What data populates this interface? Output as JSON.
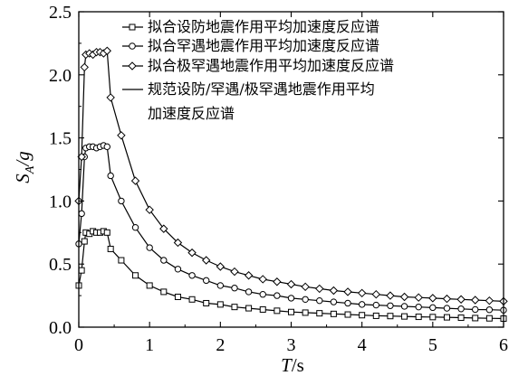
{
  "chart_data": {
    "type": "line",
    "xlabel_var": "T",
    "xlabel_unit": "/s",
    "ylabel_var": "S",
    "ylabel_sub": "A",
    "ylabel_tail": "/g",
    "xlim": [
      0,
      6
    ],
    "ylim": [
      0,
      2.5
    ],
    "x_ticks": [
      "0",
      "1",
      "2",
      "3",
      "4",
      "5",
      "6"
    ],
    "y_ticks": [
      "0.0",
      "0.5",
      "1.0",
      "1.5",
      "2.0",
      "2.5"
    ],
    "grid": false,
    "legend_position": "top-right",
    "legend_entries": [
      {
        "label": "拟合设防地震作用平均加速度反应谱",
        "marker": "square"
      },
      {
        "label": "拟合罕遇地震作用平均加速度反应谱",
        "marker": "circle"
      },
      {
        "label": "拟合极罕遇地震作用平均加速度反应谱",
        "marker": "diamond"
      },
      {
        "label": "规范设防/罕遇/极罕遇地震作用平均",
        "label_line2": "加速度反应谱",
        "marker": "line"
      }
    ],
    "x": [
      0,
      0.04,
      0.08,
      0.1,
      0.15,
      0.2,
      0.25,
      0.3,
      0.35,
      0.4,
      0.45,
      0.6,
      0.8,
      1.0,
      1.2,
      1.4,
      1.6,
      1.8,
      2.0,
      2.2,
      2.4,
      2.6,
      2.8,
      3.0,
      3.2,
      3.4,
      3.6,
      3.8,
      4.0,
      4.2,
      4.4,
      4.6,
      4.8,
      5.0,
      5.2,
      5.4,
      5.6,
      5.8,
      6.0
    ],
    "series": [
      {
        "name": "拟合设防地震作用平均加速度反应谱",
        "marker": "square",
        "values": [
          0.33,
          0.45,
          0.68,
          0.75,
          0.74,
          0.76,
          0.75,
          0.75,
          0.76,
          0.75,
          0.62,
          0.53,
          0.41,
          0.33,
          0.28,
          0.24,
          0.22,
          0.19,
          0.18,
          0.16,
          0.15,
          0.14,
          0.13,
          0.12,
          0.115,
          0.11,
          0.105,
          0.1,
          0.095,
          0.09,
          0.088,
          0.085,
          0.082,
          0.08,
          0.078,
          0.075,
          0.072,
          0.07,
          0.068
        ]
      },
      {
        "name": "拟合罕遇地震作用平均加速度反应谱",
        "marker": "circle",
        "values": [
          0.66,
          0.9,
          1.35,
          1.42,
          1.43,
          1.43,
          1.42,
          1.43,
          1.44,
          1.43,
          1.2,
          1.0,
          0.79,
          0.63,
          0.53,
          0.46,
          0.41,
          0.37,
          0.33,
          0.31,
          0.28,
          0.26,
          0.25,
          0.23,
          0.22,
          0.21,
          0.2,
          0.19,
          0.18,
          0.175,
          0.17,
          0.165,
          0.16,
          0.155,
          0.15,
          0.145,
          0.14,
          0.138,
          0.135
        ]
      },
      {
        "name": "拟合极罕遇地震作用平均加速度反应谱",
        "marker": "diamond",
        "values": [
          1.0,
          1.35,
          2.06,
          2.16,
          2.17,
          2.16,
          2.18,
          2.18,
          2.17,
          2.19,
          1.82,
          1.52,
          1.16,
          0.93,
          0.78,
          0.67,
          0.59,
          0.53,
          0.48,
          0.44,
          0.41,
          0.38,
          0.36,
          0.34,
          0.32,
          0.305,
          0.29,
          0.28,
          0.27,
          0.26,
          0.25,
          0.24,
          0.235,
          0.23,
          0.225,
          0.22,
          0.215,
          0.21,
          0.205
        ]
      }
    ]
  }
}
